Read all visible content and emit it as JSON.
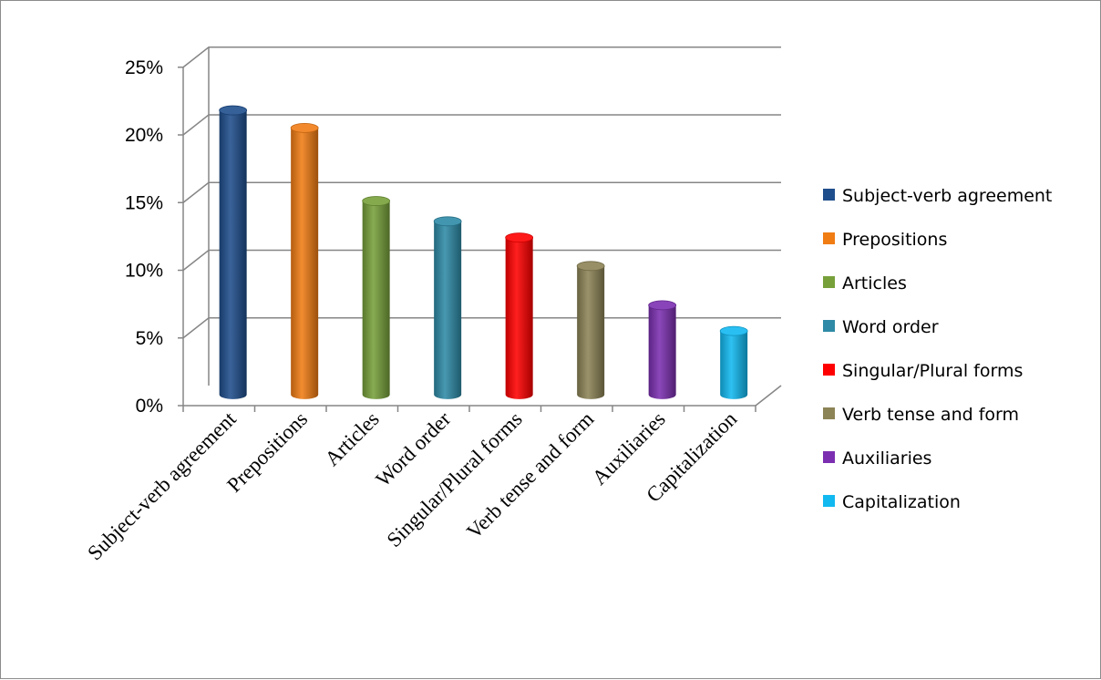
{
  "chart_data": {
    "type": "bar",
    "categories": [
      "Subject-verb agreement",
      "Prepositions",
      "Articles",
      "Word order",
      "Singular/Plural forms",
      "Verb tense and form",
      "Auxiliaries",
      "Capitalization"
    ],
    "values": [
      21,
      19.7,
      14.3,
      12.8,
      11.6,
      9.5,
      6.6,
      4.7
    ],
    "colors": [
      "#1f4e8c",
      "#f07c14",
      "#77a03a",
      "#2e8aa6",
      "#ff0000",
      "#8c8356",
      "#7b2fb0",
      "#12b8f0"
    ],
    "y_ticks": [
      "0%",
      "5%",
      "10%",
      "15%",
      "20%",
      "25%"
    ],
    "ylim": [
      0,
      25
    ],
    "y_unit": "percent",
    "grid": true,
    "legend_position": "right",
    "style": "3d-cylinder",
    "title": "",
    "xlabel": "",
    "ylabel": ""
  }
}
